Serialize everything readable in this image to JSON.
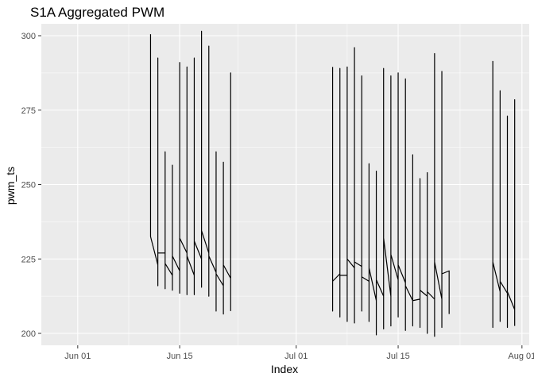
{
  "chart_data": {
    "type": "line",
    "title": "S1A  Aggregated PWM",
    "xlabel": "Index",
    "ylabel": "pwm_ts",
    "x_type": "date",
    "xlim": [
      "2022-05-27",
      "2022-08-02"
    ],
    "ylim": [
      196,
      304
    ],
    "x_ticks": [
      {
        "date": "2022-06-01",
        "label": "Jun 01"
      },
      {
        "date": "2022-06-15",
        "label": "Jun 15"
      },
      {
        "date": "2022-07-01",
        "label": "Jul 01"
      },
      {
        "date": "2022-07-15",
        "label": "Jul 15"
      },
      {
        "date": "2022-08-01",
        "label": "Aug 01"
      }
    ],
    "y_ticks": [
      200,
      225,
      250,
      275,
      300
    ],
    "grid": true,
    "background": "#ebebeb",
    "line_color": "#000000",
    "series": [
      {
        "points": [
          {
            "x": "2022-06-11 00:00",
            "y": 300.5
          },
          {
            "x": "2022-06-11 00:01",
            "y": 232.5
          },
          {
            "x": "2022-06-12 00:00",
            "y": 223.0
          },
          {
            "x": "2022-06-12 00:01",
            "y": 292.5
          },
          {
            "x": "2022-06-12 00:02",
            "y": 216.0
          },
          {
            "x": "2022-06-12 00:03",
            "y": 227.0
          },
          {
            "x": "2022-06-13 00:00",
            "y": 227.0
          },
          {
            "x": "2022-06-13 00:01",
            "y": 261.0
          },
          {
            "x": "2022-06-13 00:02",
            "y": 215.0
          },
          {
            "x": "2022-06-13 00:03",
            "y": 223.5
          },
          {
            "x": "2022-06-14 00:00",
            "y": 219.5
          },
          {
            "x": "2022-06-14 00:01",
            "y": 256.5
          },
          {
            "x": "2022-06-14 00:02",
            "y": 214.5
          },
          {
            "x": "2022-06-14 00:03",
            "y": 226.0
          },
          {
            "x": "2022-06-15 00:00",
            "y": 221.0
          },
          {
            "x": "2022-06-15 00:01",
            "y": 291.0
          },
          {
            "x": "2022-06-15 00:02",
            "y": 213.5
          },
          {
            "x": "2022-06-15 00:03",
            "y": 232.0
          },
          {
            "x": "2022-06-16 00:00",
            "y": 227.0
          },
          {
            "x": "2022-06-16 00:01",
            "y": 289.5
          },
          {
            "x": "2022-06-16 00:02",
            "y": 213.0
          },
          {
            "x": "2022-06-16 00:03",
            "y": 226.0
          },
          {
            "x": "2022-06-17 00:00",
            "y": 219.5
          },
          {
            "x": "2022-06-17 00:01",
            "y": 292.5
          },
          {
            "x": "2022-06-17 00:02",
            "y": 213.0
          },
          {
            "x": "2022-06-17 00:03",
            "y": 231.0
          },
          {
            "x": "2022-06-18 00:00",
            "y": 225.0
          },
          {
            "x": "2022-06-18 00:01",
            "y": 301.5
          },
          {
            "x": "2022-06-18 00:02",
            "y": 215.5
          },
          {
            "x": "2022-06-18 00:03",
            "y": 234.5
          },
          {
            "x": "2022-06-19 00:00",
            "y": 227.0
          },
          {
            "x": "2022-06-19 00:01",
            "y": 296.5
          },
          {
            "x": "2022-06-19 00:02",
            "y": 212.5
          },
          {
            "x": "2022-06-19 00:03",
            "y": 226.0
          },
          {
            "x": "2022-06-20 00:00",
            "y": 220.5
          },
          {
            "x": "2022-06-20 00:01",
            "y": 261.0
          },
          {
            "x": "2022-06-20 00:02",
            "y": 207.5
          },
          {
            "x": "2022-06-20 00:03",
            "y": 220.0
          },
          {
            "x": "2022-06-21 00:00",
            "y": 216.0
          },
          {
            "x": "2022-06-21 00:01",
            "y": 257.5
          },
          {
            "x": "2022-06-21 00:02",
            "y": 206.5
          },
          {
            "x": "2022-06-21 00:03",
            "y": 223.0
          },
          {
            "x": "2022-06-22 00:00",
            "y": 218.5
          },
          {
            "x": "2022-06-22 00:01",
            "y": 287.5
          },
          {
            "x": "2022-06-22 00:02",
            "y": 207.5
          }
        ]
      },
      {
        "points": [
          {
            "x": "2022-07-06 00:00",
            "y": 289.5
          },
          {
            "x": "2022-07-06 00:01",
            "y": 207.5
          },
          {
            "x": "2022-07-06 00:02",
            "y": 217.5
          },
          {
            "x": "2022-07-07 00:00",
            "y": 220.0
          },
          {
            "x": "2022-07-07 00:01",
            "y": 289.0
          },
          {
            "x": "2022-07-07 00:02",
            "y": 205.5
          },
          {
            "x": "2022-07-07 00:03",
            "y": 219.5
          },
          {
            "x": "2022-07-08 00:00",
            "y": 219.5
          },
          {
            "x": "2022-07-08 00:01",
            "y": 289.5
          },
          {
            "x": "2022-07-08 00:02",
            "y": 204.0
          },
          {
            "x": "2022-07-08 00:03",
            "y": 225.0
          },
          {
            "x": "2022-07-09 00:00",
            "y": 222.0
          },
          {
            "x": "2022-07-09 00:01",
            "y": 296.0
          },
          {
            "x": "2022-07-09 00:02",
            "y": 203.5
          },
          {
            "x": "2022-07-09 00:03",
            "y": 224.0
          },
          {
            "x": "2022-07-10 00:00",
            "y": 222.5
          },
          {
            "x": "2022-07-10 00:01",
            "y": 286.5
          },
          {
            "x": "2022-07-10 00:02",
            "y": 207.5
          },
          {
            "x": "2022-07-10 00:03",
            "y": 219.0
          },
          {
            "x": "2022-07-11 00:00",
            "y": 217.5
          },
          {
            "x": "2022-07-11 00:01",
            "y": 257.0
          },
          {
            "x": "2022-07-11 00:02",
            "y": 204.0
          },
          {
            "x": "2022-07-11 00:03",
            "y": 222.0
          },
          {
            "x": "2022-07-12 00:00",
            "y": 211.0
          },
          {
            "x": "2022-07-12 00:01",
            "y": 254.5
          },
          {
            "x": "2022-07-12 00:02",
            "y": 199.5
          },
          {
            "x": "2022-07-12 00:03",
            "y": 218.0
          },
          {
            "x": "2022-07-13 00:00",
            "y": 212.5
          },
          {
            "x": "2022-07-13 00:01",
            "y": 289.0
          },
          {
            "x": "2022-07-13 00:02",
            "y": 201.5
          },
          {
            "x": "2022-07-13 00:03",
            "y": 232.0
          },
          {
            "x": "2022-07-14 00:00",
            "y": 212.5
          },
          {
            "x": "2022-07-14 00:01",
            "y": 286.5
          },
          {
            "x": "2022-07-14 00:02",
            "y": 202.5
          },
          {
            "x": "2022-07-14 00:03",
            "y": 226.5
          },
          {
            "x": "2022-07-15 00:00",
            "y": 218.0
          },
          {
            "x": "2022-07-15 00:01",
            "y": 287.5
          },
          {
            "x": "2022-07-15 00:02",
            "y": 205.5
          },
          {
            "x": "2022-07-15 00:03",
            "y": 223.0
          },
          {
            "x": "2022-07-16 00:00",
            "y": 217.0
          },
          {
            "x": "2022-07-16 00:01",
            "y": 285.5
          },
          {
            "x": "2022-07-16 00:02",
            "y": 201.0
          },
          {
            "x": "2022-07-16 00:03",
            "y": 216.0
          },
          {
            "x": "2022-07-17 00:00",
            "y": 211.0
          },
          {
            "x": "2022-07-17 00:01",
            "y": 260.0
          },
          {
            "x": "2022-07-17 00:02",
            "y": 202.5
          },
          {
            "x": "2022-07-17 00:03",
            "y": 211.0
          },
          {
            "x": "2022-07-18 00:00",
            "y": 211.5
          },
          {
            "x": "2022-07-18 00:01",
            "y": 252.0
          },
          {
            "x": "2022-07-18 00:02",
            "y": 202.0
          },
          {
            "x": "2022-07-18 00:03",
            "y": 214.5
          },
          {
            "x": "2022-07-19 00:00",
            "y": 212.5
          },
          {
            "x": "2022-07-19 00:01",
            "y": 254.0
          },
          {
            "x": "2022-07-19 00:02",
            "y": 200.0
          },
          {
            "x": "2022-07-19 00:03",
            "y": 214.0
          },
          {
            "x": "2022-07-20 00:00",
            "y": 211.5
          },
          {
            "x": "2022-07-20 00:01",
            "y": 294.0
          },
          {
            "x": "2022-07-20 00:02",
            "y": 199.0
          },
          {
            "x": "2022-07-20 00:03",
            "y": 224.0
          },
          {
            "x": "2022-07-21 00:00",
            "y": 211.5
          },
          {
            "x": "2022-07-21 00:01",
            "y": 288.0
          },
          {
            "x": "2022-07-21 00:02",
            "y": 202.0
          },
          {
            "x": "2022-07-21 00:03",
            "y": 220.0
          },
          {
            "x": "2022-07-22 00:00",
            "y": 221.0
          },
          {
            "x": "2022-07-22 00:01",
            "y": 206.5
          }
        ]
      },
      {
        "points": [
          {
            "x": "2022-07-28 00:00",
            "y": 291.5
          },
          {
            "x": "2022-07-28 00:01",
            "y": 202.0
          },
          {
            "x": "2022-07-28 00:02",
            "y": 224.0
          },
          {
            "x": "2022-07-29 00:00",
            "y": 214.0
          },
          {
            "x": "2022-07-29 00:01",
            "y": 281.5
          },
          {
            "x": "2022-07-29 00:02",
            "y": 204.0
          },
          {
            "x": "2022-07-29 00:03",
            "y": 217.5
          },
          {
            "x": "2022-07-30 00:00",
            "y": 213.5
          },
          {
            "x": "2022-07-30 00:01",
            "y": 273.0
          },
          {
            "x": "2022-07-30 00:02",
            "y": 202.0
          },
          {
            "x": "2022-07-30 00:03",
            "y": 214.0
          },
          {
            "x": "2022-07-31 00:00",
            "y": 208.0
          },
          {
            "x": "2022-07-31 00:01",
            "y": 278.5
          },
          {
            "x": "2022-07-31 00:02",
            "y": 202.5
          }
        ]
      }
    ]
  }
}
